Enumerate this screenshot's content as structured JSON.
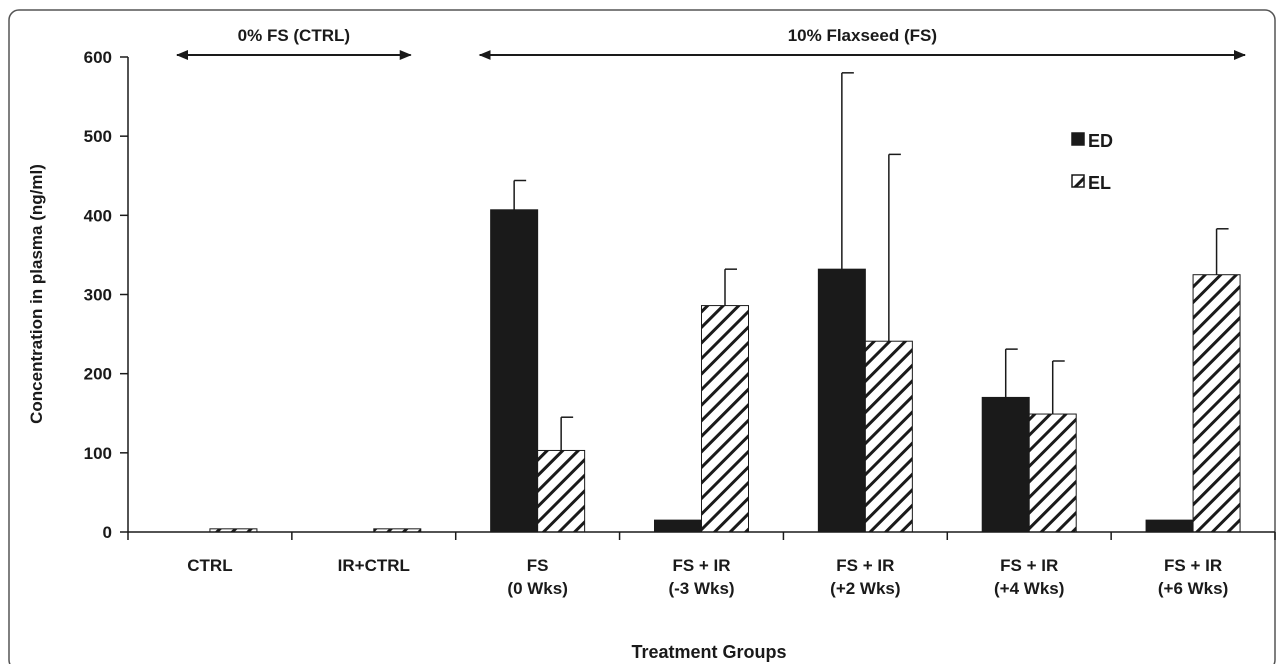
{
  "chart_data": {
    "type": "bar",
    "title": "",
    "xlabel": "Treatment Groups",
    "ylabel": "Concentration in plasma (ng/ml)",
    "ylim": [
      0,
      600
    ],
    "yticks": [
      0,
      100,
      200,
      300,
      400,
      500,
      600
    ],
    "grid": false,
    "legend_position": "top-right",
    "categories": [
      [
        "CTRL"
      ],
      [
        "IR+CTRL"
      ],
      [
        "FS",
        "(0 Wks)"
      ],
      [
        "FS + IR",
        "(-3 Wks)"
      ],
      [
        "FS + IR",
        "(+2 Wks)"
      ],
      [
        "FS + IR",
        "(+4 Wks)"
      ],
      [
        "FS + IR",
        "(+6 Wks)"
      ]
    ],
    "series": [
      {
        "name": "ED",
        "style": "solid",
        "color": "#1a1a1a",
        "values": [
          0,
          0,
          407,
          15,
          332,
          170,
          15
        ],
        "errors": [
          0,
          0,
          37,
          0,
          248,
          61,
          0
        ]
      },
      {
        "name": "EL",
        "style": "hatched",
        "color": "#1a1a1a",
        "values": [
          4,
          4,
          103,
          286,
          241,
          149,
          325
        ],
        "errors": [
          0,
          0,
          42,
          46,
          236,
          67,
          58
        ]
      }
    ],
    "annotations": [
      {
        "text": "0% FS (CTRL)",
        "from_category": 0,
        "to_category": 1
      },
      {
        "text": "10% Flaxseed (FS)",
        "from_category": 2,
        "to_category": 6
      }
    ]
  }
}
